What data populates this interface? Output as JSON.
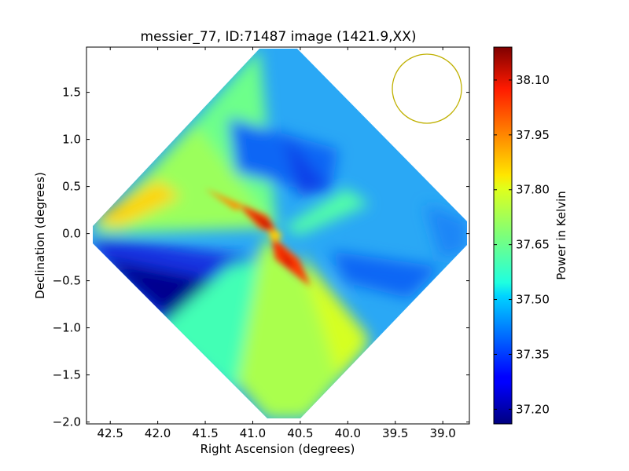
{
  "chart_data": {
    "type": "heatmap",
    "title": "messier_77, ID:71487 image (1421.9,XX)",
    "xlabel": "Right Ascension (degrees)",
    "ylabel": "Declination (degrees)",
    "xlim": [
      42.75,
      38.72
    ],
    "ylim": [
      -2.02,
      1.98
    ],
    "x_ticks": [
      42.5,
      42.0,
      41.5,
      41.0,
      40.5,
      40.0,
      39.5,
      39.0
    ],
    "x_tick_labels": [
      "42.5",
      "42.0",
      "41.5",
      "41.0",
      "40.5",
      "40.0",
      "39.5",
      "39.0"
    ],
    "y_ticks": [
      1.5,
      1.0,
      0.5,
      0.0,
      -0.5,
      -1.0,
      -1.5,
      -2.0
    ],
    "y_tick_labels": [
      "1.5",
      "1.0",
      "0.5",
      "0.0",
      "−0.5",
      "−1.0",
      "−1.5",
      "−2.0"
    ],
    "colorbar": {
      "label": "Power in Kelvin",
      "colormap": "jet",
      "range": [
        37.16,
        38.19
      ],
      "ticks": [
        38.1,
        37.95,
        37.8,
        37.65,
        37.5,
        37.35,
        37.2
      ],
      "tick_labels": [
        "38.10",
        "37.95",
        "37.80",
        "37.65",
        "37.50",
        "37.35",
        "37.20"
      ]
    },
    "footprint": {
      "shape": "diamond",
      "center": [
        40.68,
        -0.03
      ],
      "corners": [
        [
          40.68,
          1.96
        ],
        [
          38.75,
          -0.03
        ],
        [
          40.68,
          -2.0
        ],
        [
          42.72,
          -0.03
        ]
      ]
    },
    "beam_circle": {
      "center": [
        39.12,
        1.55
      ],
      "radius_deg": 0.37,
      "color": "#bfb000"
    },
    "grid": false,
    "legend": "none"
  }
}
